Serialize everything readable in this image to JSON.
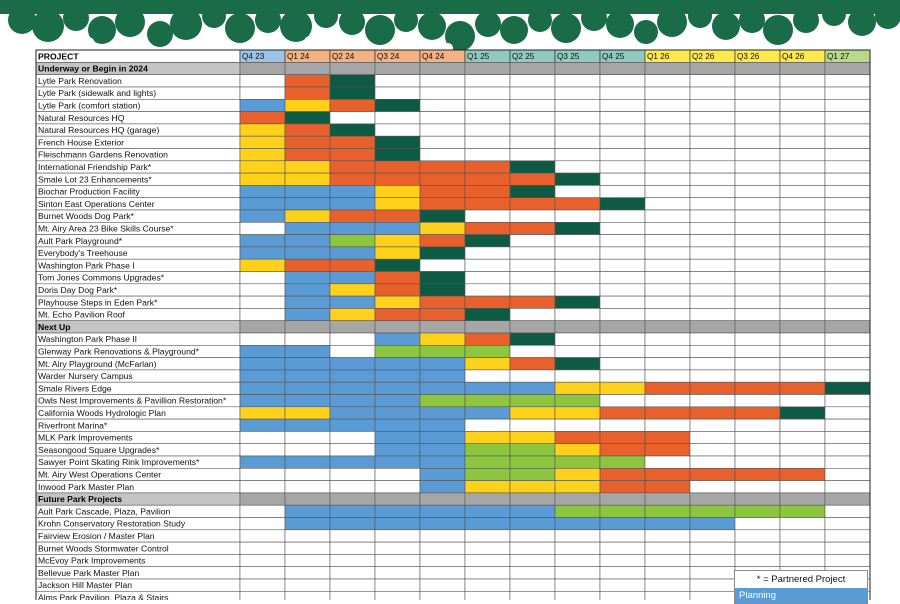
{
  "chart_data": {
    "type": "table",
    "header_label": "PROJECT",
    "quarters": [
      "Q4 23",
      "Q1 24",
      "Q2 24",
      "Q3 24",
      "Q4 24",
      "Q1 25",
      "Q2 25",
      "Q3 25",
      "Q4 25",
      "Q1 26",
      "Q2 26",
      "Q3 26",
      "Q4 26",
      "Q1 27"
    ],
    "quarter_colors": [
      "#9dc3e6",
      "#f4b183",
      "#f4b183",
      "#f4b183",
      "#f4b183",
      "#8fc9c0",
      "#8fc9c0",
      "#8fc9c0",
      "#8fc9c0",
      "#ffe94d",
      "#ffe94d",
      "#ffe94d",
      "#ffe94d",
      "#b7d98a"
    ],
    "phase_colors": {
      "P": "#5b9bd5",
      "Y": "#ffd11a",
      "O": "#e8602c",
      "D": "#0d5a45",
      "G": "#8cc63f",
      "S": "#a6a6a6"
    },
    "rows": [
      {
        "label": "Underway or Begin in 2024",
        "section": true
      },
      {
        "label": "Lytle Park Renovation",
        "cells": ".OD..........."
      },
      {
        "label": "Lytle Park (sidewalk and lights)",
        "cells": ".OD..........."
      },
      {
        "label": "Lytle Park (comfort station)",
        "cells": "PYOD.........."
      },
      {
        "label": "Natural Resources HQ",
        "cells": "OD............"
      },
      {
        "label": "Natural Resources HQ (garage)",
        "cells": "YOD..........."
      },
      {
        "label": "French House Exterior",
        "cells": "YOOD.........."
      },
      {
        "label": "Fleischmann Gardens Renovation",
        "cells": "YOOD.........."
      },
      {
        "label": "International Friendship Park*",
        "cells": "YYOOOOD......."
      },
      {
        "label": "Smale Lot 23 Enhancements*",
        "cells": "YYOOOOOD......"
      },
      {
        "label": "Biochar Production Facility",
        "cells": "PPPYOOD......."
      },
      {
        "label": "Sinton East Operations Center",
        "cells": "PPPYOOOOD....."
      },
      {
        "label": "Burnet Woods Dog Park*",
        "cells": "PYOOD........."
      },
      {
        "label": "Mt. Airy Area 23 Bike Skills Course*",
        "cells": ".PPPYOOD......"
      },
      {
        "label": "Ault Park Playground*",
        "cells": "PPGYOD........"
      },
      {
        "label": "Everybody's Treehouse",
        "cells": "PPPYD........."
      },
      {
        "label": "Washington Park Phase I",
        "cells": "YOOD.........."
      },
      {
        "label": "Tom Jones Commons Upgrades*",
        "cells": ".PPOD........."
      },
      {
        "label": "Doris Day Dog Park*",
        "cells": ".PYOD........."
      },
      {
        "label": "Playhouse Steps in Eden Park*",
        "cells": ".PPYOOOD......"
      },
      {
        "label": "Mt. Echo Pavilion Roof",
        "cells": ".PYOOD........"
      },
      {
        "label": "Next Up",
        "section": true
      },
      {
        "label": "Washington Park Phase II",
        "cells": "...PYOD......."
      },
      {
        "label": "Glenway Park Renovations & Playground*",
        "cells": "PP.GGG........"
      },
      {
        "label": "Mt. Airy Playground (McFarlan)",
        "cells": "PPPPPYOD......"
      },
      {
        "label": "Warder Nursery Campus",
        "cells": "PPPPP........."
      },
      {
        "label": "Smale Rivers Edge",
        "cells": "PPPPPPPYYOOOOD"
      },
      {
        "label": "Owls Nest Improvements & Pavillion Restoration*",
        "cells": "PPPPGGGG......"
      },
      {
        "label": "California Woods Hydrologic Plan",
        "cells": "YYPPPPYYOOOOD."
      },
      {
        "label": "Riverfront Marina*",
        "cells": "PPPPP........."
      },
      {
        "label": "MLK Park Improvements",
        "cells": "...PPYYOOO...."
      },
      {
        "label": "Seasongood Square Upgrades*",
        "cells": "...PPGGYOO...."
      },
      {
        "label": "Sawyer Point Skating Rink Improvements*",
        "cells": "PPPPPGGGG....."
      },
      {
        "label": "Mt. Airy West Operations Center",
        "cells": "....PGGYOOOOO."
      },
      {
        "label": "Inwood Park Master Plan",
        "cells": "....PYYYOO...."
      },
      {
        "label": "Future Park Projects",
        "section": true
      },
      {
        "label": "Ault Park Cascade, Plaza, Pavilion",
        "cells": ".PPPPPPGGGGGG."
      },
      {
        "label": "Krohn Conservatory Restoration Study",
        "cells": ".PPPPPPPPPP..."
      },
      {
        "label": "Fairview Erosion / Master Plan",
        "cells": ".............."
      },
      {
        "label": "Burnet Woods Stormwater Control",
        "cells": ".............."
      },
      {
        "label": "McEvoy Park Improvements",
        "cells": ".............."
      },
      {
        "label": "Bellevue Park Master Plan",
        "cells": ".............."
      },
      {
        "label": "Jackson Hill Master Plan",
        "cells": ".............."
      },
      {
        "label": "Alms Park Pavilion, Plaza & Stairs",
        "cells": ".............."
      }
    ]
  },
  "legend": {
    "partnered_note": "* = Partnered Project",
    "planning_label": "Planning",
    "planning_color": "#5b9bd5"
  }
}
